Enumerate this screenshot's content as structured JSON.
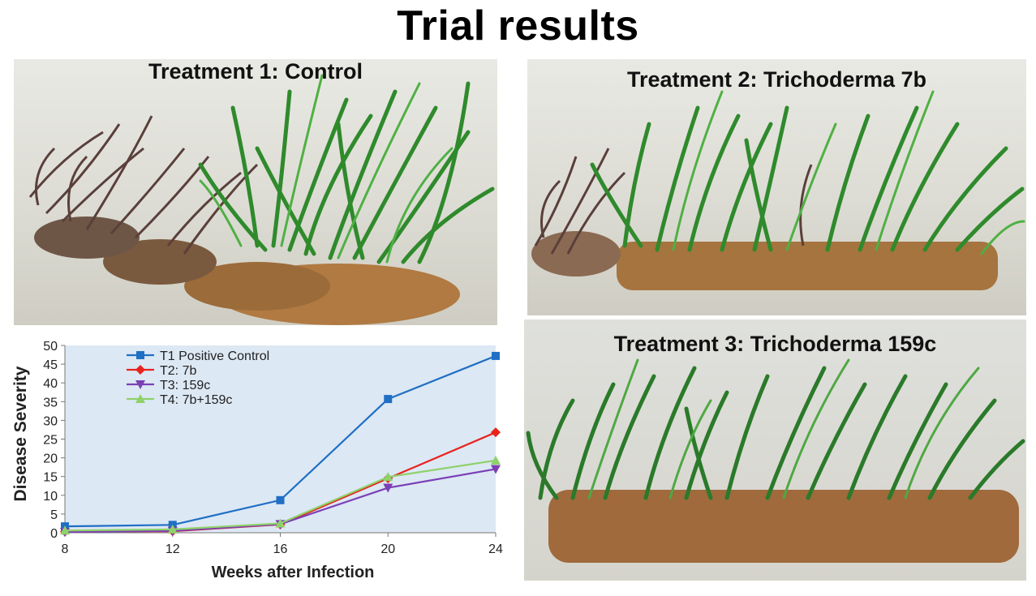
{
  "slide": {
    "title": "Trial results"
  },
  "photos": [
    {
      "caption": "Treatment 1: Control"
    },
    {
      "caption": "Treatment 2: Trichoderma 7b"
    },
    {
      "caption": "Treatment 3: Trichoderma 159c"
    }
  ],
  "chart_data": {
    "type": "line",
    "title": "",
    "xlabel": "Weeks after Infection",
    "ylabel": "Disease Severity",
    "x": [
      8,
      12,
      16,
      20,
      24
    ],
    "xticks": [
      8,
      12,
      16,
      20,
      24
    ],
    "yticks": [
      0,
      5,
      10,
      15,
      20,
      25,
      30,
      35,
      40,
      45,
      50
    ],
    "xlim": [
      8,
      24
    ],
    "ylim": [
      0,
      50
    ],
    "grid": false,
    "legend_position": "top-left",
    "background": "#dce8f4",
    "series": [
      {
        "name": "T1  Positive   Control",
        "color": "#1f6fc4",
        "marker": "square",
        "values": [
          1.7,
          2.1,
          8.7,
          35.7,
          47.2
        ]
      },
      {
        "name": "T2: 7b",
        "color": "#e8231d",
        "marker": "diamond",
        "values": [
          0.3,
          0.4,
          2.2,
          14.5,
          26.8
        ]
      },
      {
        "name": "T3: 159c",
        "color": "#7b3fb5",
        "marker": "triangle-down",
        "values": [
          0.2,
          0.5,
          2.3,
          12.0,
          17.0
        ]
      },
      {
        "name": "T4: 7b+159c",
        "color": "#8fd16a",
        "marker": "triangle-up",
        "values": [
          0.6,
          0.9,
          2.5,
          14.9,
          19.3
        ]
      }
    ]
  }
}
